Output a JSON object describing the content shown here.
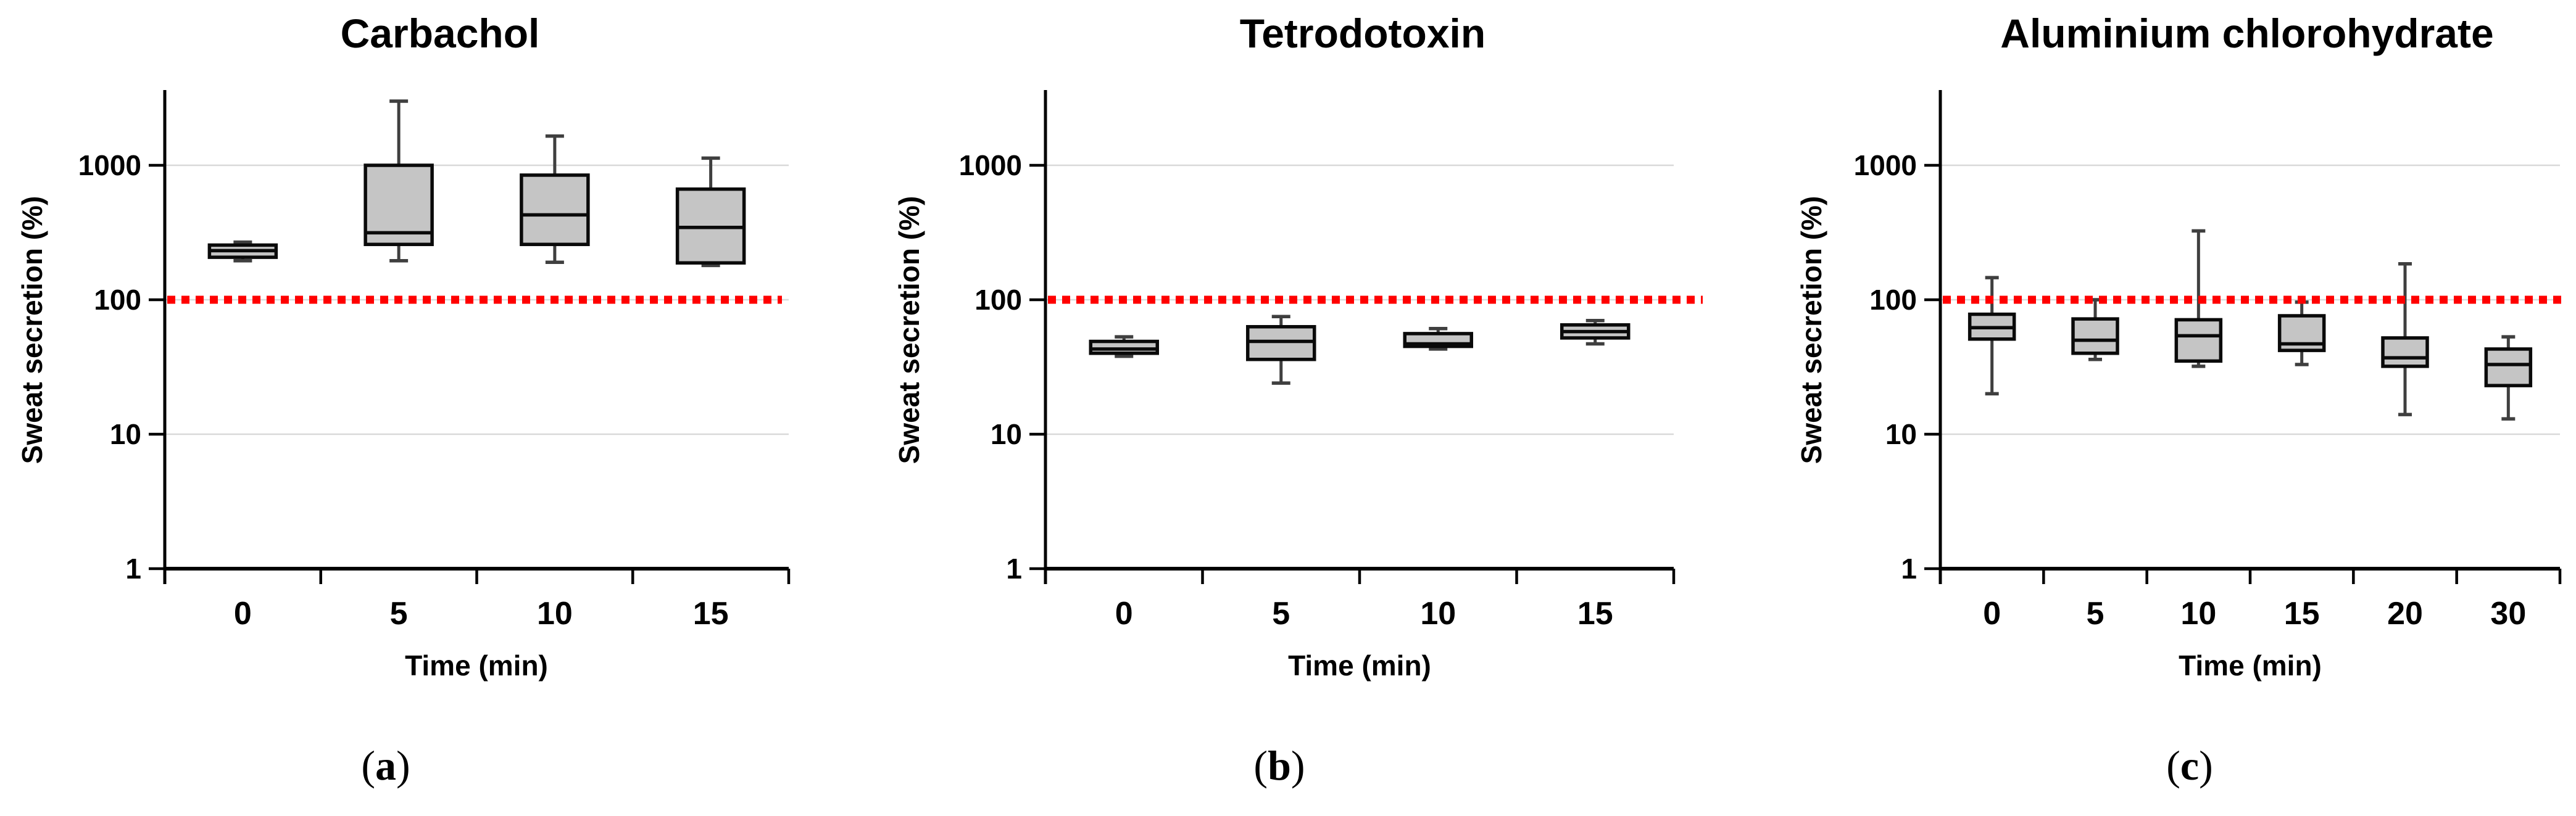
{
  "style": {
    "background": "#ffffff",
    "box_fill": "#C5C5C5",
    "box_border": "#0A0A0A",
    "whisker_color": "#3F3F3F",
    "gridline_color": "#D9D9D9",
    "axis_color": "#000000",
    "reference_line_color": "#FF0000",
    "text_color": "#000000"
  },
  "y_axis": {
    "label": "Sweat secretion (%)",
    "scale": "log",
    "tick_labels": [
      "1000",
      "100",
      "10",
      "1"
    ],
    "tick_values": [
      1000,
      100,
      10,
      1
    ]
  },
  "x_axis": {
    "label": "Time (min)"
  },
  "reference_line": {
    "value": 100,
    "color": "#FF0000",
    "style": "dotted"
  },
  "panels": [
    {
      "letter": {
        "open": "(",
        "char": "a",
        "close": ")"
      }
    },
    {
      "letter": {
        "open": "(",
        "char": "b",
        "close": ")"
      }
    },
    {
      "letter": {
        "open": "(",
        "char": "c",
        "close": ")"
      }
    }
  ],
  "chart_data": [
    {
      "type": "box",
      "title": "Carbachol",
      "xlabel": "Time (min)",
      "ylabel": "Sweat secretion (%)",
      "yscale": "log",
      "ylim": [
        1,
        3500
      ],
      "yticks": [
        1000,
        100,
        10,
        1
      ],
      "grid": "horizontal",
      "legend": "none",
      "reference_line_y": 100,
      "categories": [
        "0",
        "5",
        "10",
        "15"
      ],
      "boxes": [
        {
          "x": "0",
          "min": 195,
          "q1": 207,
          "median": 232,
          "q3": 255,
          "max": 268
        },
        {
          "x": "5",
          "min": 195,
          "q1": 258,
          "median": 315,
          "q3": 1000,
          "max": 3000
        },
        {
          "x": "10",
          "min": 190,
          "q1": 258,
          "median": 428,
          "q3": 845,
          "max": 1650
        },
        {
          "x": "15",
          "min": 180,
          "q1": 188,
          "median": 345,
          "q3": 665,
          "max": 1130
        }
      ]
    },
    {
      "type": "box",
      "title": "Tetrodotoxin",
      "xlabel": "Time (min)",
      "ylabel": "Sweat secretion (%)",
      "yscale": "log",
      "ylim": [
        1,
        3500
      ],
      "yticks": [
        1000,
        100,
        10,
        1
      ],
      "grid": "horizontal",
      "legend": "none",
      "reference_line_y": 100,
      "categories": [
        "0",
        "5",
        "10",
        "15"
      ],
      "boxes": [
        {
          "x": "0",
          "min": 38,
          "q1": 40,
          "median": 43,
          "q3": 49,
          "max": 53
        },
        {
          "x": "5",
          "min": 24,
          "q1": 36,
          "median": 49,
          "q3": 63,
          "max": 75
        },
        {
          "x": "10",
          "min": 43,
          "q1": 45,
          "median": 47,
          "q3": 56,
          "max": 61
        },
        {
          "x": "15",
          "min": 47,
          "q1": 52,
          "median": 58,
          "q3": 65,
          "max": 70
        }
      ]
    },
    {
      "type": "box",
      "title": "Aluminium chlorohydrate",
      "xlabel": "Time (min)",
      "ylabel": "Sweat secretion (%)",
      "yscale": "log",
      "ylim": [
        1,
        3500
      ],
      "yticks": [
        1000,
        100,
        10,
        1
      ],
      "grid": "horizontal",
      "legend": "none",
      "reference_line_y": 100,
      "categories": [
        "0",
        "5",
        "10",
        "15",
        "20",
        "30"
      ],
      "boxes": [
        {
          "x": "0",
          "min": 20,
          "q1": 51,
          "median": 62,
          "q3": 78,
          "max": 146
        },
        {
          "x": "5",
          "min": 36,
          "q1": 40,
          "median": 50,
          "q3": 72,
          "max": 100
        },
        {
          "x": "10",
          "min": 32,
          "q1": 35,
          "median": 54,
          "q3": 71,
          "max": 325
        },
        {
          "x": "15",
          "min": 33,
          "q1": 42,
          "median": 47,
          "q3": 76,
          "max": 96
        },
        {
          "x": "20",
          "min": 14,
          "q1": 32,
          "median": 37,
          "q3": 52,
          "max": 185
        },
        {
          "x": "30",
          "min": 13,
          "q1": 23,
          "median": 33,
          "q3": 43,
          "max": 53
        }
      ]
    }
  ]
}
